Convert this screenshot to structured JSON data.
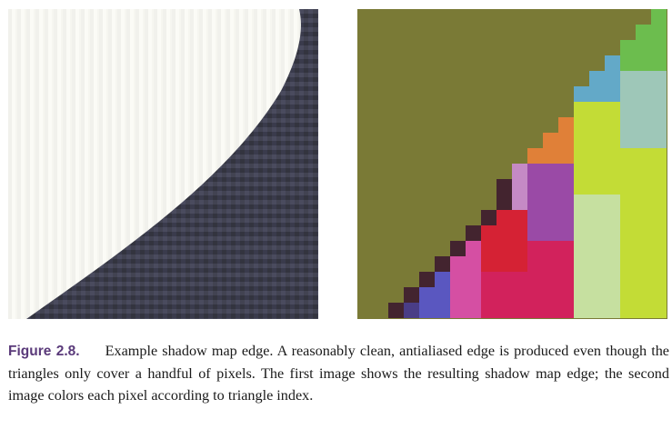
{
  "figure": {
    "label": "Figure 2.8.",
    "caption_text": "Example shadow map edge.  A reasonably clean, antialiased edge is produced even though the triangles only cover a handful of pixels.  The first image shows the resulting shadow map edge; the second image colors each pixel according to triangle index.",
    "colors": {
      "label_color": "#5a3a7a",
      "shadow_dark": "#3e3f52",
      "shadow_light": "#fbfbf6",
      "index_background": "#7a7a36",
      "triangle_palette": [
        "#43242f",
        "#4a3d86",
        "#5a57c0",
        "#e8892d",
        "#d54fa3",
        "#d2225c",
        "#d52234",
        "#e98585",
        "#e07373",
        "#c58ac5",
        "#9a4aa6",
        "#e08038",
        "#c3dc36",
        "#c6e0a0",
        "#9ec7b8",
        "#6cbd4e",
        "#63a9c8"
      ]
    },
    "images": [
      {
        "name": "shadow-map-edge",
        "icon": "shadow-map-image"
      },
      {
        "name": "triangle-index-colors",
        "icon": "triangle-index-image"
      }
    ]
  }
}
